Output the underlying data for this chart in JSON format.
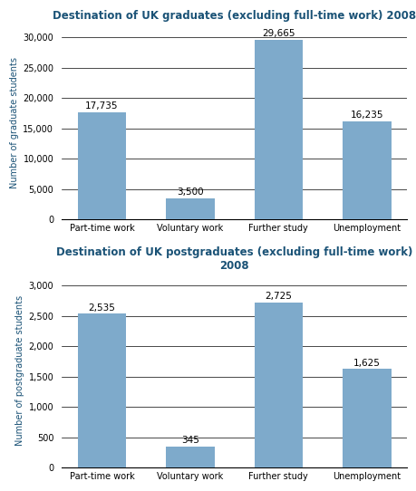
{
  "grad_title": "Destination of UK graduates (excluding full-time work) 2008",
  "postgrad_title": "Destination of UK postgraduates (excluding full-time work) 2008",
  "categories": [
    "Part-time work",
    "Voluntary work",
    "Further study",
    "Unemployment"
  ],
  "grad_values": [
    17735,
    3500,
    29665,
    16235
  ],
  "grad_labels": [
    "17,735",
    "3,500",
    "29,665",
    "16,235"
  ],
  "postgrad_values": [
    2535,
    345,
    2725,
    1625
  ],
  "postgrad_labels": [
    "2,535",
    "345",
    "2,725",
    "1,625"
  ],
  "bar_color": "#7eaacb",
  "title_color": "#1a5276",
  "ylabel_grad": "Number of graduate students",
  "ylabel_postgrad": "Number of postgraduate students",
  "grad_ylim": [
    0,
    32000
  ],
  "grad_yticks": [
    0,
    5000,
    10000,
    15000,
    20000,
    25000,
    30000
  ],
  "postgrad_ylim": [
    0,
    3200
  ],
  "postgrad_yticks": [
    0,
    500,
    1000,
    1500,
    2000,
    2500,
    3000
  ],
  "background_color": "#ffffff",
  "label_fontsize": 7.5,
  "title_fontsize": 8.5,
  "axis_label_fontsize": 7,
  "tick_fontsize": 7,
  "bar_width": 0.55
}
